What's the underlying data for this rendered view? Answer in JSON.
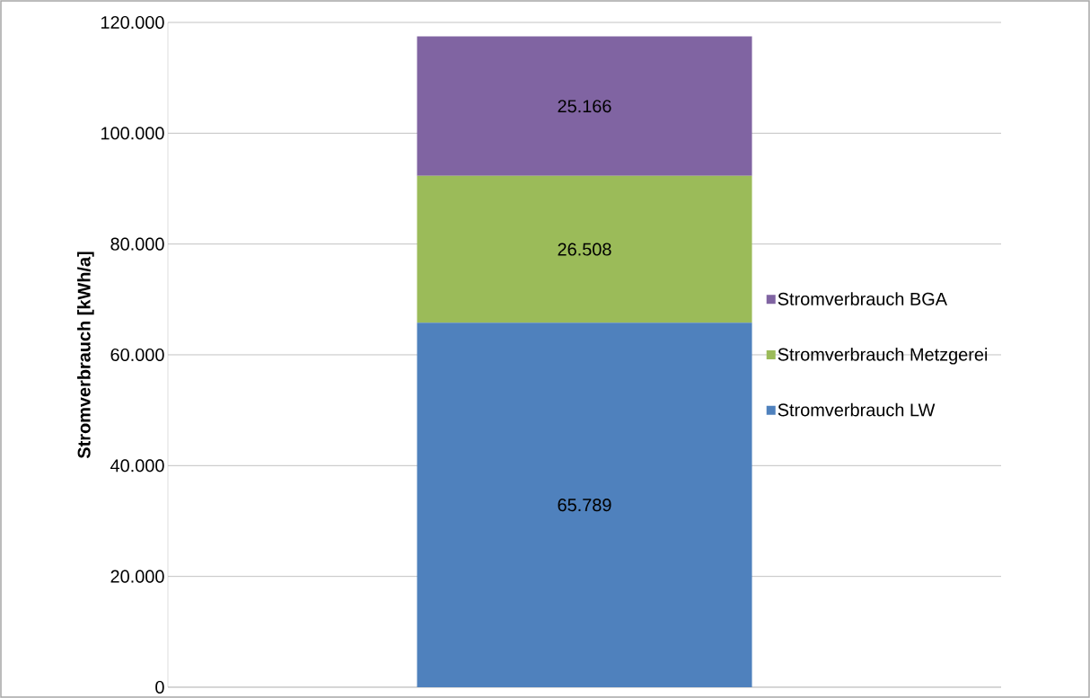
{
  "chart_data": {
    "type": "bar",
    "stacked": true,
    "ylabel": "Stromverbrauch [kWh/a]",
    "categories": [
      null
    ],
    "series": [
      {
        "name": "Stromverbrauch LW",
        "color": "#4f81bd",
        "values": [
          65789
        ],
        "value_labels": [
          "65.789"
        ]
      },
      {
        "name": "Stromverbrauch Metzgerei",
        "color": "#9bbb59",
        "values": [
          26508
        ],
        "value_labels": [
          "26.508"
        ]
      },
      {
        "name": "Stromverbrauch BGA",
        "color": "#8064a2",
        "values": [
          25166
        ],
        "value_labels": [
          "25.166"
        ]
      }
    ],
    "ylim": [
      0,
      120000
    ],
    "yticks": [
      0,
      {
        "value": 20000,
        "label": "20.000"
      },
      {
        "value": 40000,
        "label": "40.000"
      },
      {
        "value": 60000,
        "label": "60.000"
      },
      {
        "value": 80000,
        "label": "80.000"
      },
      {
        "value": 100000,
        "label": "100.000"
      },
      {
        "value": 120000,
        "label": "120.000"
      }
    ],
    "grid": "y",
    "legend": "right"
  }
}
